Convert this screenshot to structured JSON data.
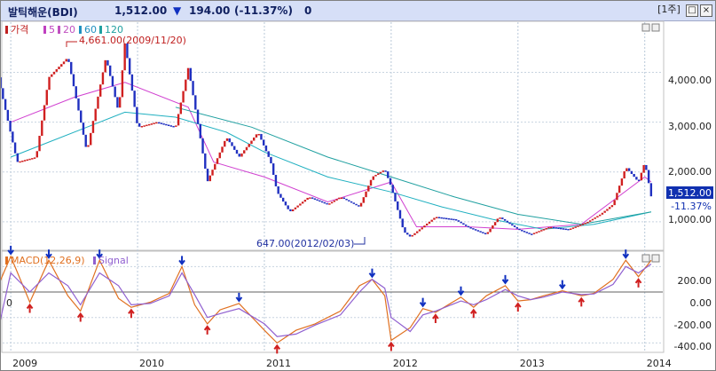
{
  "header": {
    "name": "발틱해운(BDI)",
    "price": "1,512.00",
    "arrow": "▼",
    "change": "194.00",
    "pct": "(-11.37%)",
    "volume": "0",
    "period_button": "[1주]"
  },
  "upper_panel": {
    "legend": [
      {
        "label": "가격",
        "color": "#c02020"
      },
      {
        "label": "5",
        "color": "#c040c0"
      },
      {
        "label": "20",
        "color": "#c050c0"
      },
      {
        "label": "60",
        "color": "#2090c0"
      },
      {
        "label": "120",
        "color": "#20a0a0"
      }
    ],
    "y_ticks": [
      "4,000.00",
      "3,000.00",
      "2,000.00",
      "1,000.00"
    ],
    "price_tag": "1,512.00",
    "pct_tag": "-11.37%",
    "high_annotation": "4,661.00(2009/11/20)",
    "low_annotation": "647.00(2012/02/03)"
  },
  "lower_panel": {
    "legend": [
      {
        "label": "MACD(12,26,9)",
        "color": "#e07020"
      },
      {
        "label": "Signal",
        "color": "#9060d0"
      }
    ],
    "y_ticks": [
      "200.00",
      "0.00",
      "-200.00",
      "-400.00"
    ],
    "zero_label": "0"
  },
  "x_ticks": [
    "2009",
    "2010",
    "2011",
    "2012",
    "2013",
    "2014"
  ],
  "colors": {
    "up": "#d02020",
    "down": "#2030c0",
    "ma5": "#d040d0",
    "ma20": "#c060a0",
    "ma60": "#20b0c0",
    "ma120": "#20a0a0",
    "macd": "#e07020",
    "signal": "#9060d0",
    "header_bg": "#d6dff7"
  },
  "chart_data": [
    {
      "type": "line",
      "title": "발틱해운(BDI)",
      "x": [
        "2009",
        "2010",
        "2011",
        "2012",
        "2013",
        "2014"
      ],
      "series": [
        {
          "name": "가격",
          "points": [
            [
              2008.9,
              3900
            ],
            [
              2009.05,
              2200
            ],
            [
              2009.2,
              2300
            ],
            [
              2009.3,
              3900
            ],
            [
              2009.45,
              4300
            ],
            [
              2009.6,
              2400
            ],
            [
              2009.75,
              4300
            ],
            [
              2009.85,
              3200
            ],
            [
              2009.9,
              4600
            ],
            [
              2010.0,
              2900
            ],
            [
              2010.15,
              3000
            ],
            [
              2010.3,
              2900
            ],
            [
              2010.4,
              4100
            ],
            [
              2010.5,
              2600
            ],
            [
              2010.55,
              1800
            ],
            [
              2010.7,
              2700
            ],
            [
              2010.8,
              2300
            ],
            [
              2010.95,
              2800
            ],
            [
              2011.05,
              2200
            ],
            [
              2011.1,
              1600
            ],
            [
              2011.2,
              1200
            ],
            [
              2011.35,
              1500
            ],
            [
              2011.5,
              1350
            ],
            [
              2011.6,
              1500
            ],
            [
              2011.75,
              1300
            ],
            [
              2011.85,
              1900
            ],
            [
              2011.95,
              2050
            ],
            [
              2012.0,
              1700
            ],
            [
              2012.1,
              800
            ],
            [
              2012.15,
              700
            ],
            [
              2012.25,
              900
            ],
            [
              2012.35,
              1100
            ],
            [
              2012.5,
              1050
            ],
            [
              2012.6,
              900
            ],
            [
              2012.75,
              750
            ],
            [
              2012.85,
              1100
            ],
            [
              2013.0,
              850
            ],
            [
              2013.1,
              750
            ],
            [
              2013.25,
              900
            ],
            [
              2013.4,
              850
            ],
            [
              2013.55,
              1000
            ],
            [
              2013.65,
              1150
            ],
            [
              2013.75,
              1350
            ],
            [
              2013.85,
              2100
            ],
            [
              2013.95,
              1800
            ],
            [
              2014.0,
              2200
            ],
            [
              2014.05,
              1512
            ]
          ]
        },
        {
          "name": "5",
          "points": [
            [
              2009.0,
              3000
            ],
            [
              2009.5,
              3500
            ],
            [
              2009.9,
              3800
            ],
            [
              2010.4,
              3300
            ],
            [
              2010.6,
              2200
            ],
            [
              2011.0,
              1900
            ],
            [
              2011.5,
              1400
            ],
            [
              2012.0,
              1800
            ],
            [
              2012.2,
              900
            ],
            [
              2012.6,
              900
            ],
            [
              2013.0,
              850
            ],
            [
              2013.5,
              950
            ],
            [
              2014.0,
              1900
            ],
            [
              2014.05,
              1800
            ]
          ]
        },
        {
          "name": "60",
          "points": [
            [
              2009.0,
              2300
            ],
            [
              2009.3,
              2600
            ],
            [
              2009.6,
              2900
            ],
            [
              2009.9,
              3200
            ],
            [
              2010.3,
              3100
            ],
            [
              2010.7,
              2800
            ],
            [
              2011.0,
              2400
            ],
            [
              2011.5,
              1900
            ],
            [
              2012.0,
              1600
            ],
            [
              2012.4,
              1300
            ],
            [
              2012.8,
              1050
            ],
            [
              2013.2,
              850
            ],
            [
              2013.6,
              950
            ],
            [
              2014.05,
              1200
            ]
          ]
        },
        {
          "name": "120",
          "points": [
            [
              2010.3,
              3300
            ],
            [
              2010.9,
              2900
            ],
            [
              2011.5,
              2300
            ],
            [
              2012.0,
              1900
            ],
            [
              2012.5,
              1500
            ],
            [
              2013.0,
              1150
            ],
            [
              2013.5,
              950
            ],
            [
              2014.05,
              1200
            ]
          ]
        }
      ],
      "annotations": [
        {
          "text": "4,661.00(2009/11/20)",
          "x": "2009-11-20",
          "y": 4661
        },
        {
          "text": "647.00(2012/02/03)",
          "x": "2012-02-03",
          "y": 647
        }
      ],
      "ylim": [
        500,
        4900
      ]
    },
    {
      "type": "line",
      "title": "",
      "series": [
        {
          "name": "MACD(12,26,9)",
          "points": [
            [
              2008.9,
              50
            ],
            [
              2009.0,
              280
            ],
            [
              2009.15,
              -80
            ],
            [
              2009.3,
              250
            ],
            [
              2009.45,
              -30
            ],
            [
              2009.55,
              -150
            ],
            [
              2009.7,
              250
            ],
            [
              2009.85,
              -50
            ],
            [
              2009.95,
              -120
            ],
            [
              2010.1,
              -80
            ],
            [
              2010.25,
              -10
            ],
            [
              2010.35,
              200
            ],
            [
              2010.45,
              -100
            ],
            [
              2010.55,
              -250
            ],
            [
              2010.65,
              -140
            ],
            [
              2010.8,
              -90
            ],
            [
              2011.0,
              -300
            ],
            [
              2011.1,
              -400
            ],
            [
              2011.25,
              -300
            ],
            [
              2011.4,
              -250
            ],
            [
              2011.6,
              -150
            ],
            [
              2011.75,
              50
            ],
            [
              2011.85,
              100
            ],
            [
              2011.95,
              -30
            ],
            [
              2012.0,
              -380
            ],
            [
              2012.15,
              -280
            ],
            [
              2012.25,
              -130
            ],
            [
              2012.35,
              -160
            ],
            [
              2012.55,
              -40
            ],
            [
              2012.65,
              -120
            ],
            [
              2012.75,
              -30
            ],
            [
              2012.9,
              50
            ],
            [
              2013.0,
              -70
            ],
            [
              2013.1,
              -60
            ],
            [
              2013.2,
              -30
            ],
            [
              2013.35,
              10
            ],
            [
              2013.5,
              -30
            ],
            [
              2013.6,
              -10
            ],
            [
              2013.75,
              100
            ],
            [
              2013.85,
              250
            ],
            [
              2013.95,
              120
            ],
            [
              2014.05,
              250
            ]
          ]
        },
        {
          "name": "Signal",
          "points": [
            [
              2008.9,
              -300
            ],
            [
              2009.0,
              150
            ],
            [
              2009.15,
              0
            ],
            [
              2009.3,
              150
            ],
            [
              2009.45,
              50
            ],
            [
              2009.55,
              -100
            ],
            [
              2009.7,
              150
            ],
            [
              2009.85,
              50
            ],
            [
              2009.95,
              -100
            ],
            [
              2010.1,
              -90
            ],
            [
              2010.25,
              -30
            ],
            [
              2010.35,
              150
            ],
            [
              2010.45,
              -20
            ],
            [
              2010.55,
              -200
            ],
            [
              2010.65,
              -170
            ],
            [
              2010.8,
              -130
            ],
            [
              2011.0,
              -250
            ],
            [
              2011.1,
              -350
            ],
            [
              2011.25,
              -330
            ],
            [
              2011.4,
              -260
            ],
            [
              2011.6,
              -180
            ],
            [
              2011.75,
              0
            ],
            [
              2011.85,
              100
            ],
            [
              2011.95,
              30
            ],
            [
              2012.0,
              -200
            ],
            [
              2012.15,
              -310
            ],
            [
              2012.25,
              -180
            ],
            [
              2012.35,
              -150
            ],
            [
              2012.55,
              -70
            ],
            [
              2012.65,
              -100
            ],
            [
              2012.75,
              -60
            ],
            [
              2012.9,
              20
            ],
            [
              2013.0,
              -30
            ],
            [
              2013.1,
              -60
            ],
            [
              2013.2,
              -40
            ],
            [
              2013.35,
              0
            ],
            [
              2013.5,
              -20
            ],
            [
              2013.6,
              -15
            ],
            [
              2013.75,
              60
            ],
            [
              2013.85,
              200
            ],
            [
              2013.95,
              150
            ],
            [
              2014.05,
              220
            ]
          ]
        }
      ],
      "ylim": [
        -460,
        300
      ]
    }
  ]
}
